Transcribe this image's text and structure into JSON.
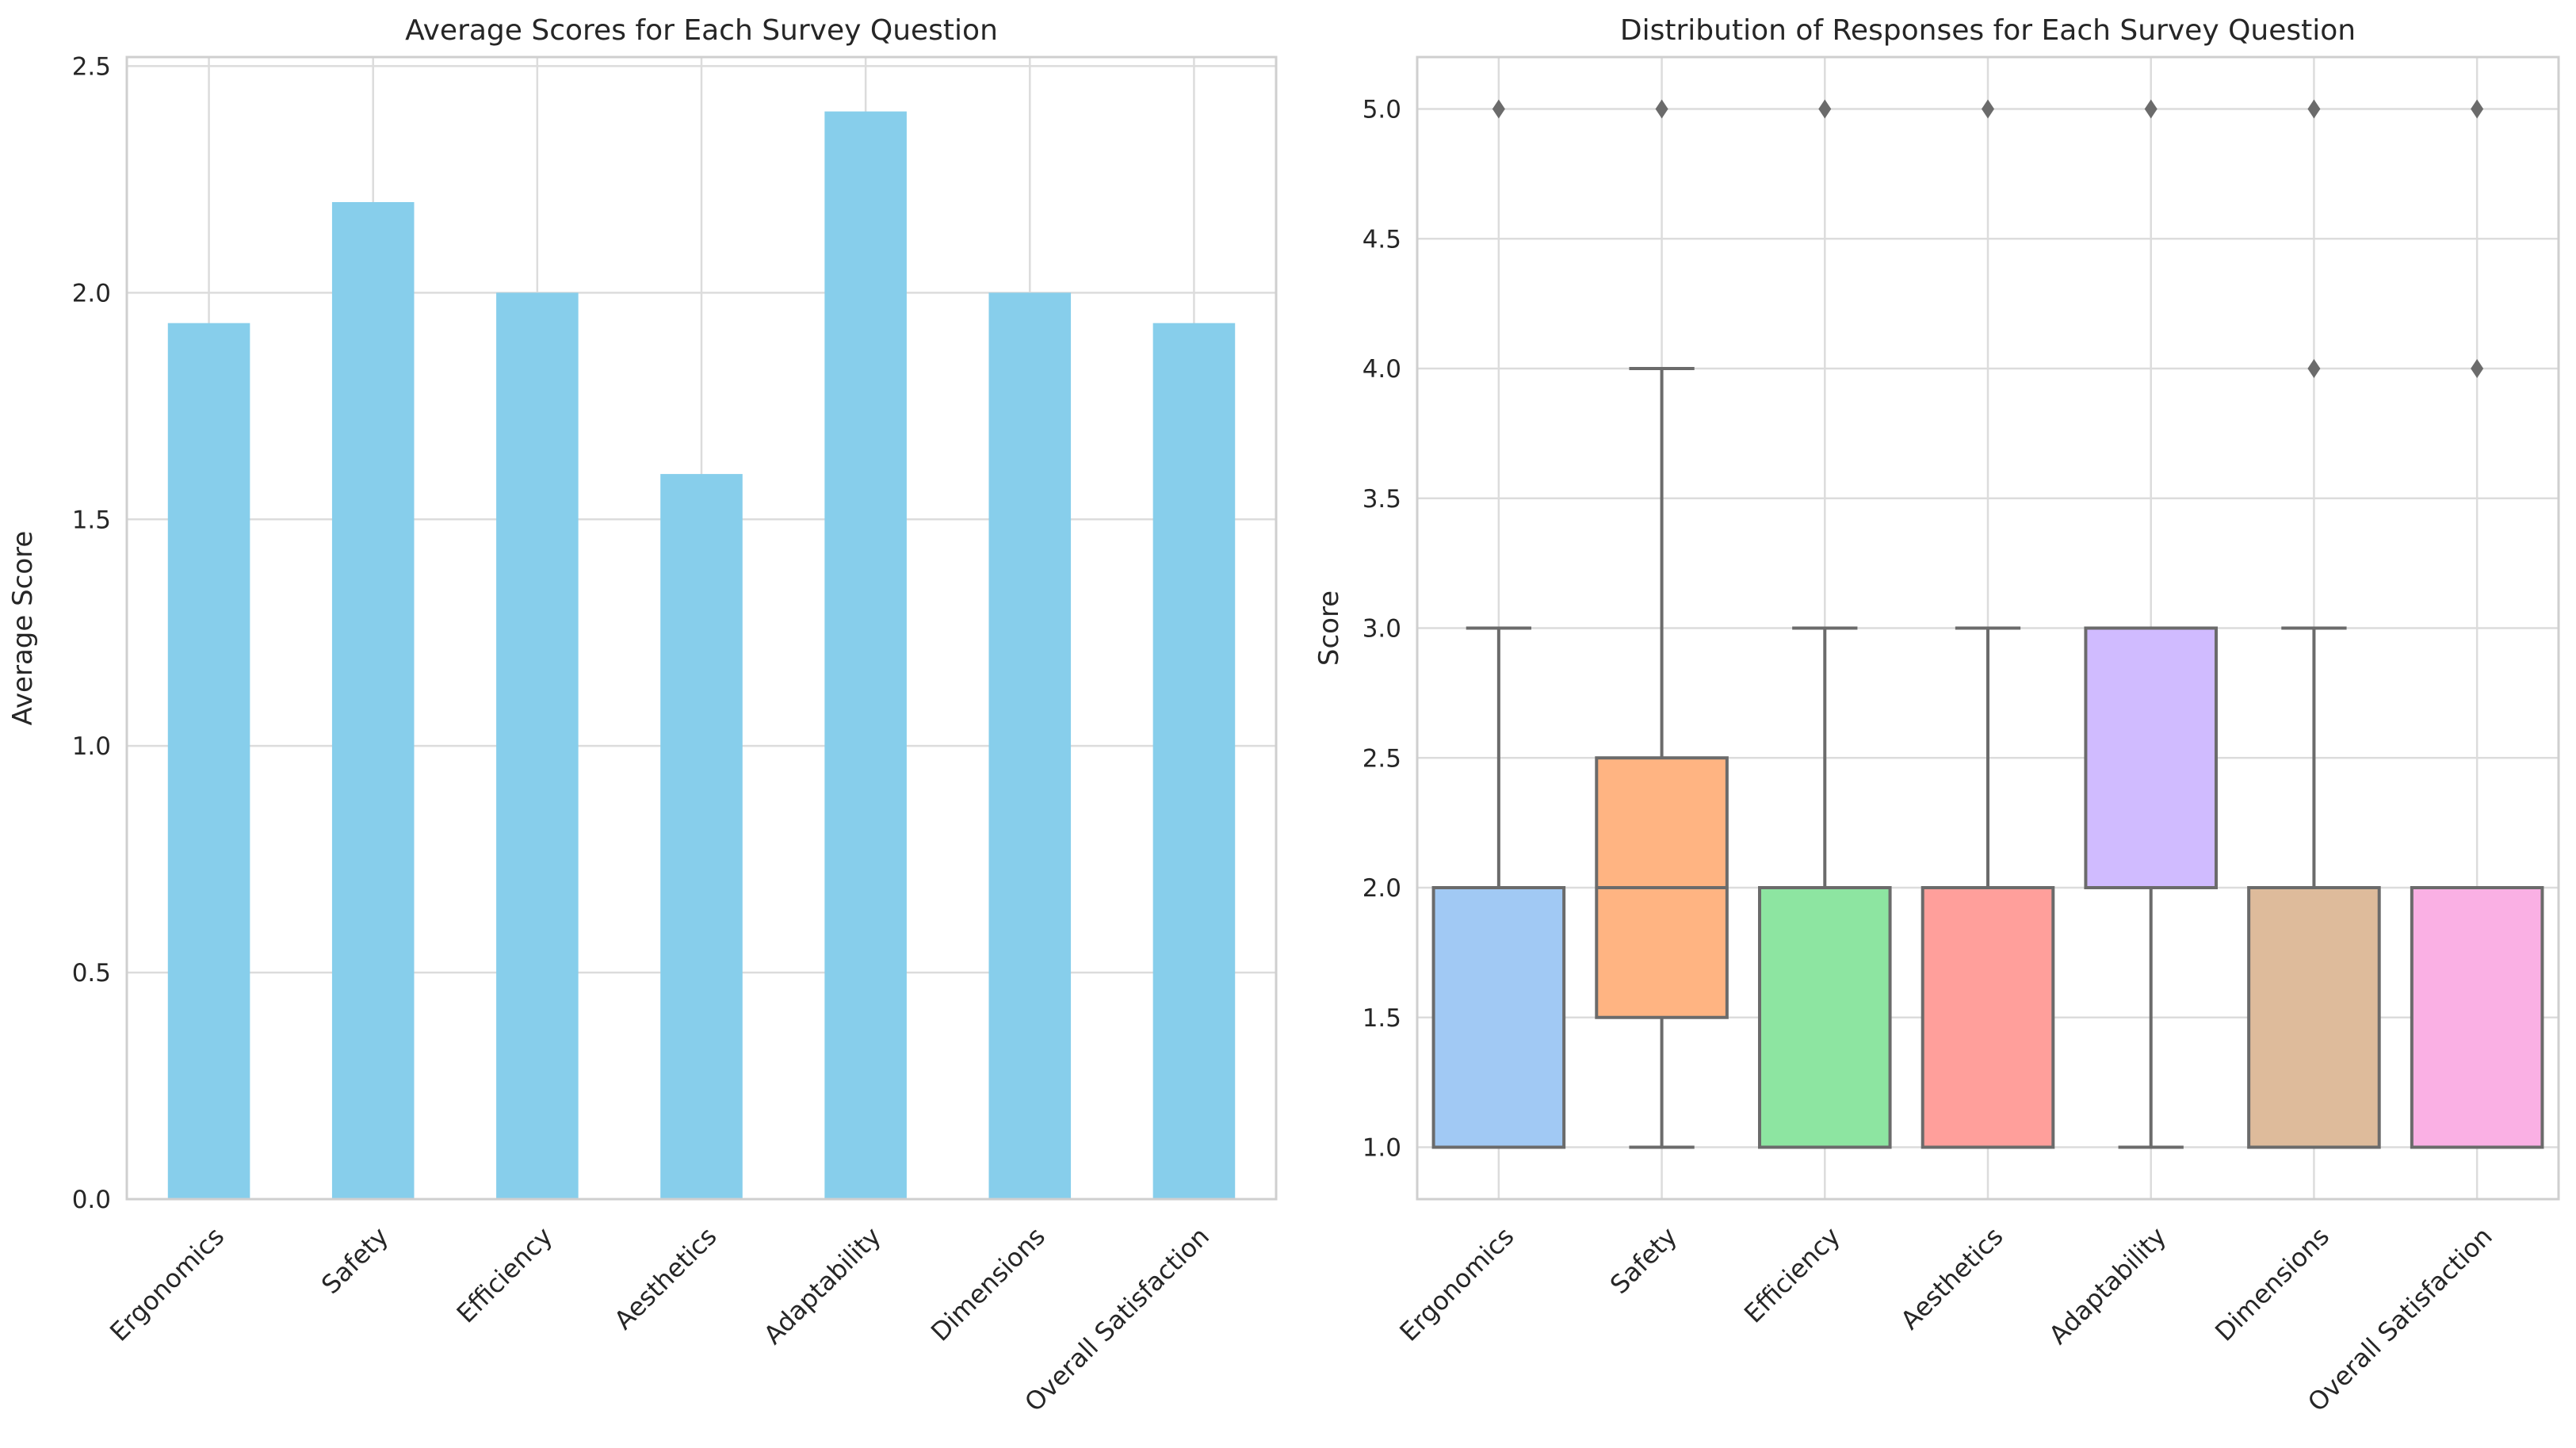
{
  "chart_data": [
    {
      "type": "bar",
      "title": "Average Scores for Each Survey Question",
      "xlabel": "",
      "ylabel": "Average Score",
      "categories": [
        "Ergonomics",
        "Safety",
        "Efficiency",
        "Aesthetics",
        "Adaptability",
        "Dimensions",
        "Overall Satisfaction"
      ],
      "values": [
        1.933,
        2.2,
        2.0,
        1.6,
        2.4,
        2.0,
        1.933
      ],
      "ylim": [
        0,
        2.52
      ],
      "yticks": [
        0.0,
        0.5,
        1.0,
        1.5,
        2.0,
        2.5
      ],
      "ytick_labels": [
        "0.0",
        "0.5",
        "1.0",
        "1.5",
        "2.0",
        "2.5"
      ],
      "grid": true,
      "bar_color": "#87ceeb"
    },
    {
      "type": "box",
      "title": "Distribution of Responses for Each Survey Question",
      "xlabel": "",
      "ylabel": "Score",
      "categories": [
        "Ergonomics",
        "Safety",
        "Efficiency",
        "Aesthetics",
        "Adaptability",
        "Dimensions",
        "Overall Satisfaction"
      ],
      "boxes": [
        {
          "q1": 1.0,
          "median": 1.0,
          "q3": 2.0,
          "whisker_low": 1.0,
          "whisker_high": 3.0,
          "outliers": [
            5.0
          ],
          "color": "#a1c9f4"
        },
        {
          "q1": 1.5,
          "median": 2.0,
          "q3": 2.5,
          "whisker_low": 1.0,
          "whisker_high": 4.0,
          "outliers": [
            5.0
          ],
          "color": "#ffb482"
        },
        {
          "q1": 1.0,
          "median": 1.0,
          "q3": 2.0,
          "whisker_low": 1.0,
          "whisker_high": 3.0,
          "outliers": [
            5.0
          ],
          "color": "#8de5a1"
        },
        {
          "q1": 1.0,
          "median": 1.0,
          "q3": 2.0,
          "whisker_low": 1.0,
          "whisker_high": 3.0,
          "outliers": [
            5.0
          ],
          "color": "#ff9f9b"
        },
        {
          "q1": 2.0,
          "median": 3.0,
          "q3": 3.0,
          "whisker_low": 1.0,
          "whisker_high": 3.0,
          "outliers": [
            5.0
          ],
          "color": "#d0bbff"
        },
        {
          "q1": 1.0,
          "median": 1.0,
          "q3": 2.0,
          "whisker_low": 1.0,
          "whisker_high": 3.0,
          "outliers": [
            4.0,
            5.0
          ],
          "color": "#debb9b"
        },
        {
          "q1": 1.0,
          "median": 1.0,
          "q3": 2.0,
          "whisker_low": 1.0,
          "whisker_high": 2.0,
          "outliers": [
            4.0,
            5.0
          ],
          "color": "#fab0e4"
        }
      ],
      "ylim": [
        0.8,
        5.2
      ],
      "yticks": [
        1.0,
        1.5,
        2.0,
        2.5,
        3.0,
        3.5,
        4.0,
        4.5,
        5.0
      ],
      "ytick_labels": [
        "1.0",
        "1.5",
        "2.0",
        "2.5",
        "3.0",
        "3.5",
        "4.0",
        "4.5",
        "5.0"
      ],
      "grid": true,
      "line_color": "#6b6b6b"
    }
  ]
}
